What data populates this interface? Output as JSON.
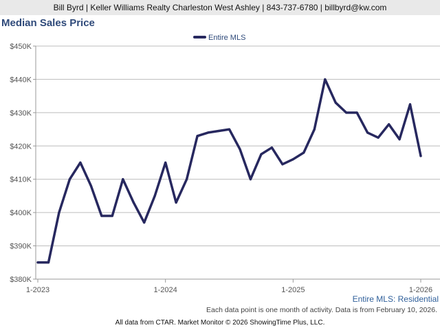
{
  "banner": {
    "text": "Bill Byrd | Keller Williams Realty Charleston West Ashley | 843-737-6780 | billbyrd@kw.com"
  },
  "chart_data": {
    "type": "line",
    "title": "Median Sales Price",
    "xlabel": "",
    "ylabel": "",
    "ylim": [
      380000,
      450000
    ],
    "yticks": [
      380000,
      390000,
      400000,
      410000,
      420000,
      430000,
      440000,
      450000
    ],
    "ytick_labels": [
      "$380K",
      "$390K",
      "$400K",
      "$410K",
      "$420K",
      "$430K",
      "$440K",
      "$450K"
    ],
    "xtick_labels": [
      "1-2023",
      "1-2024",
      "1-2025",
      "1-2026"
    ],
    "xtick_indices": [
      0,
      12,
      24,
      36
    ],
    "x": [
      "1-2023",
      "2-2023",
      "3-2023",
      "4-2023",
      "5-2023",
      "6-2023",
      "7-2023",
      "8-2023",
      "9-2023",
      "10-2023",
      "11-2023",
      "12-2023",
      "1-2024",
      "2-2024",
      "3-2024",
      "4-2024",
      "5-2024",
      "6-2024",
      "7-2024",
      "8-2024",
      "9-2024",
      "10-2024",
      "11-2024",
      "12-2024",
      "1-2025",
      "2-2025",
      "3-2025",
      "4-2025",
      "5-2025",
      "6-2025",
      "7-2025",
      "8-2025",
      "9-2025",
      "10-2025",
      "11-2025",
      "12-2025",
      "1-2026"
    ],
    "grid": true,
    "legend": "top-center",
    "series": [
      {
        "name": "Entire MLS",
        "color": "#27285f",
        "values": [
          385000,
          385000,
          400000,
          410000,
          415000,
          408000,
          399000,
          399000,
          410000,
          403000,
          397000,
          405000,
          415000,
          403000,
          410000,
          423000,
          424000,
          424500,
          425000,
          419000,
          410000,
          417500,
          419500,
          414500,
          416000,
          418000,
          425000,
          440000,
          433000,
          430000,
          430000,
          424000,
          422500,
          426500,
          422000,
          432500,
          417000
        ]
      }
    ]
  },
  "subtitle": "Entire MLS: Residential",
  "footnote": "Each data point is one month of activity. Data is from February 10, 2026.",
  "credits": "All data from CTAR. Market Monitor © 2026 ShowingTime Plus, LLC."
}
